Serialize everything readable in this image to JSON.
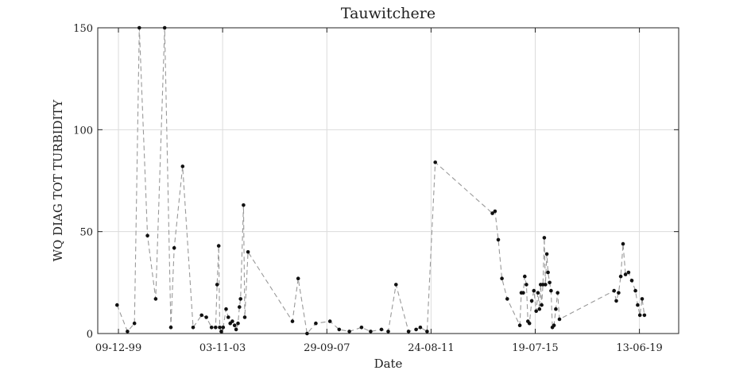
{
  "chart_data": {
    "type": "line",
    "title": "Tauwitchere",
    "xlabel": "Date",
    "ylabel": "WQ DIAG TOT TURBIDITY",
    "grid": true,
    "x_axis_type": "date",
    "xlim": [
      "1999-03-01",
      "2020-12-01"
    ],
    "ylim": [
      0,
      150
    ],
    "x_ticks": [
      {
        "date": "1999-12-09",
        "label": "09-12-99"
      },
      {
        "date": "2003-11-03",
        "label": "03-11-03"
      },
      {
        "date": "2007-09-29",
        "label": "29-09-07"
      },
      {
        "date": "2011-08-24",
        "label": "24-08-11"
      },
      {
        "date": "2015-07-19",
        "label": "19-07-15"
      },
      {
        "date": "2019-06-13",
        "label": "13-06-19"
      }
    ],
    "y_ticks": [
      0,
      50,
      100,
      150
    ],
    "series_color": "#999999",
    "marker_color": "#111111",
    "series": [
      {
        "x": [
          "1999-11-20",
          "2000-04-10",
          "2000-07-15",
          "2000-09-20",
          "2001-01-10",
          "2001-05-01",
          "2001-09-01",
          "2001-11-25",
          "2002-01-10",
          "2002-05-05",
          "2002-09-25",
          "2003-01-20",
          "2003-03-25",
          "2003-06-05",
          "2003-07-30",
          "2003-08-20",
          "2003-09-10",
          "2003-09-25",
          "2003-10-15",
          "2003-11-10",
          "2003-12-20",
          "2004-01-20",
          "2004-02-15",
          "2004-03-15",
          "2004-04-15",
          "2004-05-05",
          "2004-06-01",
          "2004-06-20",
          "2004-07-05",
          "2004-08-15",
          "2004-09-01",
          "2004-10-15",
          "2006-06-15",
          "2006-09-01",
          "2007-01-01",
          "2007-05-01",
          "2007-11-10",
          "2008-03-15",
          "2008-08-01",
          "2009-01-15",
          "2009-05-20",
          "2009-10-15",
          "2010-01-15",
          "2010-05-01",
          "2010-10-20",
          "2011-02-01",
          "2011-03-30",
          "2011-07-01",
          "2011-10-20",
          "2013-12-10",
          "2014-01-15",
          "2014-03-01",
          "2014-04-20",
          "2014-07-01",
          "2014-12-20",
          "2015-01-10",
          "2015-02-05",
          "2015-02-25",
          "2015-03-20",
          "2015-04-10",
          "2015-05-01",
          "2015-06-01",
          "2015-07-01",
          "2015-08-01",
          "2015-08-25",
          "2015-09-15",
          "2015-10-01",
          "2015-10-15",
          "2015-11-01",
          "2015-11-20",
          "2015-12-05",
          "2015-12-25",
          "2016-01-10",
          "2016-02-01",
          "2016-02-20",
          "2016-03-10",
          "2016-04-01",
          "2016-04-25",
          "2016-05-20",
          "2016-06-15",
          "2018-07-01",
          "2018-08-01",
          "2018-09-01",
          "2018-10-01",
          "2018-11-01",
          "2018-12-05",
          "2019-01-15",
          "2019-03-01",
          "2019-04-20",
          "2019-05-20",
          "2019-06-20",
          "2019-07-20",
          "2019-08-20"
        ],
        "y": [
          14,
          1,
          5,
          150,
          48,
          17,
          150,
          3,
          42,
          82,
          3,
          9,
          8,
          3,
          3,
          24,
          43,
          3,
          1,
          3,
          12,
          8,
          5,
          6,
          4,
          2,
          5,
          13,
          17,
          63,
          8,
          40,
          6,
          27,
          0,
          5,
          6,
          2,
          1,
          3,
          1,
          2,
          1,
          24,
          1,
          2,
          3,
          1,
          84,
          59,
          60,
          46,
          27,
          17,
          4,
          20,
          20,
          28,
          24,
          6,
          5,
          16,
          21,
          11,
          20,
          12,
          24,
          14,
          24,
          47,
          24,
          39,
          30,
          25,
          21,
          3,
          4,
          12,
          20,
          7,
          21,
          16,
          20,
          28,
          44,
          29,
          30,
          26,
          21,
          14,
          9,
          17,
          9
        ]
      }
    ]
  }
}
